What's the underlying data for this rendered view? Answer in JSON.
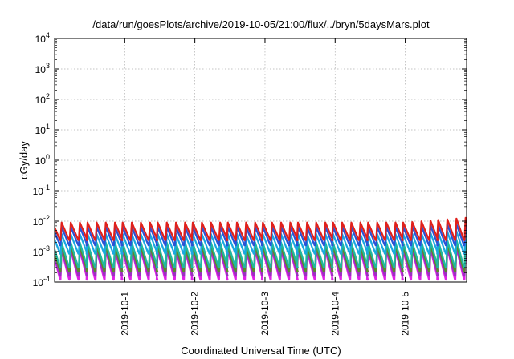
{
  "chart_data": {
    "type": "line",
    "title": "/data/run/goesPlots/archive/2019-10-05/21:00/flux/../bryn/5daysMars.plot",
    "xlabel": "Coordinated Universal Time (UTC)",
    "ylabel": "cGy/day",
    "y_scale": "log",
    "ylim": [
      0.0001,
      10000
    ],
    "y_ticks": [
      {
        "base": "10",
        "exp": "-4"
      },
      {
        "base": "10",
        "exp": "-3"
      },
      {
        "base": "10",
        "exp": "-2"
      },
      {
        "base": "10",
        "exp": "-1"
      },
      {
        "base": "10",
        "exp": "0"
      },
      {
        "base": "10",
        "exp": "1"
      },
      {
        "base": "10",
        "exp": "2"
      },
      {
        "base": "10",
        "exp": "3"
      },
      {
        "base": "10",
        "exp": "4"
      }
    ],
    "xlim": [
      "2019-09-30T00:00",
      "2019-10-05T21:00"
    ],
    "x_ticks": [
      "2019-10-1",
      "2019-10-2",
      "2019-10-3",
      "2019-10-4",
      "2019-10-5"
    ],
    "grid": true,
    "cycle_hours": 3,
    "series": [
      {
        "color": "#e0201b",
        "peak": 0.009,
        "trough": 0.0024,
        "late_peak": 0.013
      },
      {
        "color": "#2a52d6",
        "peak": 0.0065,
        "trough": 0.0016,
        "late_peak": 0.0085
      },
      {
        "color": "#1aa8e0",
        "peak": 0.0038,
        "trough": 0.00085,
        "late_peak": 0.005
      },
      {
        "color": "#20b8a0",
        "peak": 0.002,
        "trough": 0.0003,
        "late_peak": 0.0026
      },
      {
        "color": "#5a8a2a",
        "peak": 0.0015,
        "trough": 0.00022,
        "late_peak": 0.0019
      },
      {
        "color": "#9a30c0",
        "peak": 0.0012,
        "trough": 0.00016,
        "late_peak": 0.0015
      },
      {
        "color": "#e020e8",
        "peak": 0.0011,
        "trough": 0.00012,
        "late_peak": 0.0014
      }
    ]
  }
}
